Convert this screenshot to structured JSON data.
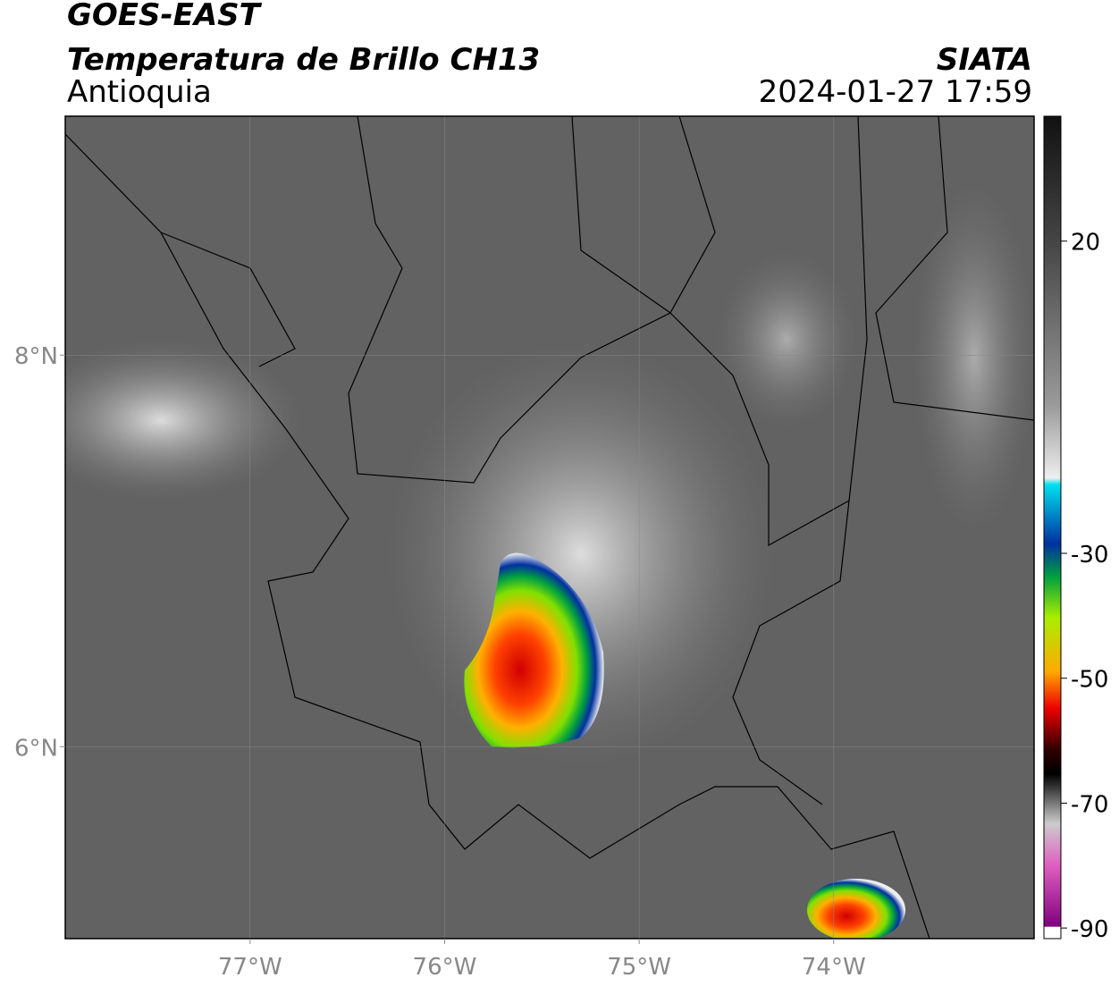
{
  "header": {
    "title": "GOES-EAST",
    "subtitle": "Temperatura de Brillo CH13",
    "region": "Antioquia",
    "source": "SIATA",
    "datetime": "2024-01-27 17:59"
  },
  "map": {
    "lonlim": [
      -77.95,
      -72.97
    ],
    "latlim": [
      5.02,
      9.22
    ],
    "lon_ticks": [
      {
        "value": -77,
        "label": "77°W"
      },
      {
        "value": -76,
        "label": "76°W"
      },
      {
        "value": -75,
        "label": "75°W"
      },
      {
        "value": -74,
        "label": "74°W"
      }
    ],
    "lat_ticks": [
      {
        "value": 8,
        "label": "8°N"
      },
      {
        "value": 6,
        "label": "6°N"
      }
    ]
  },
  "colorbar": {
    "lim": [
      -91.7,
      40
    ],
    "ticks": [
      20,
      -30,
      -50,
      -70,
      -90
    ]
  }
}
